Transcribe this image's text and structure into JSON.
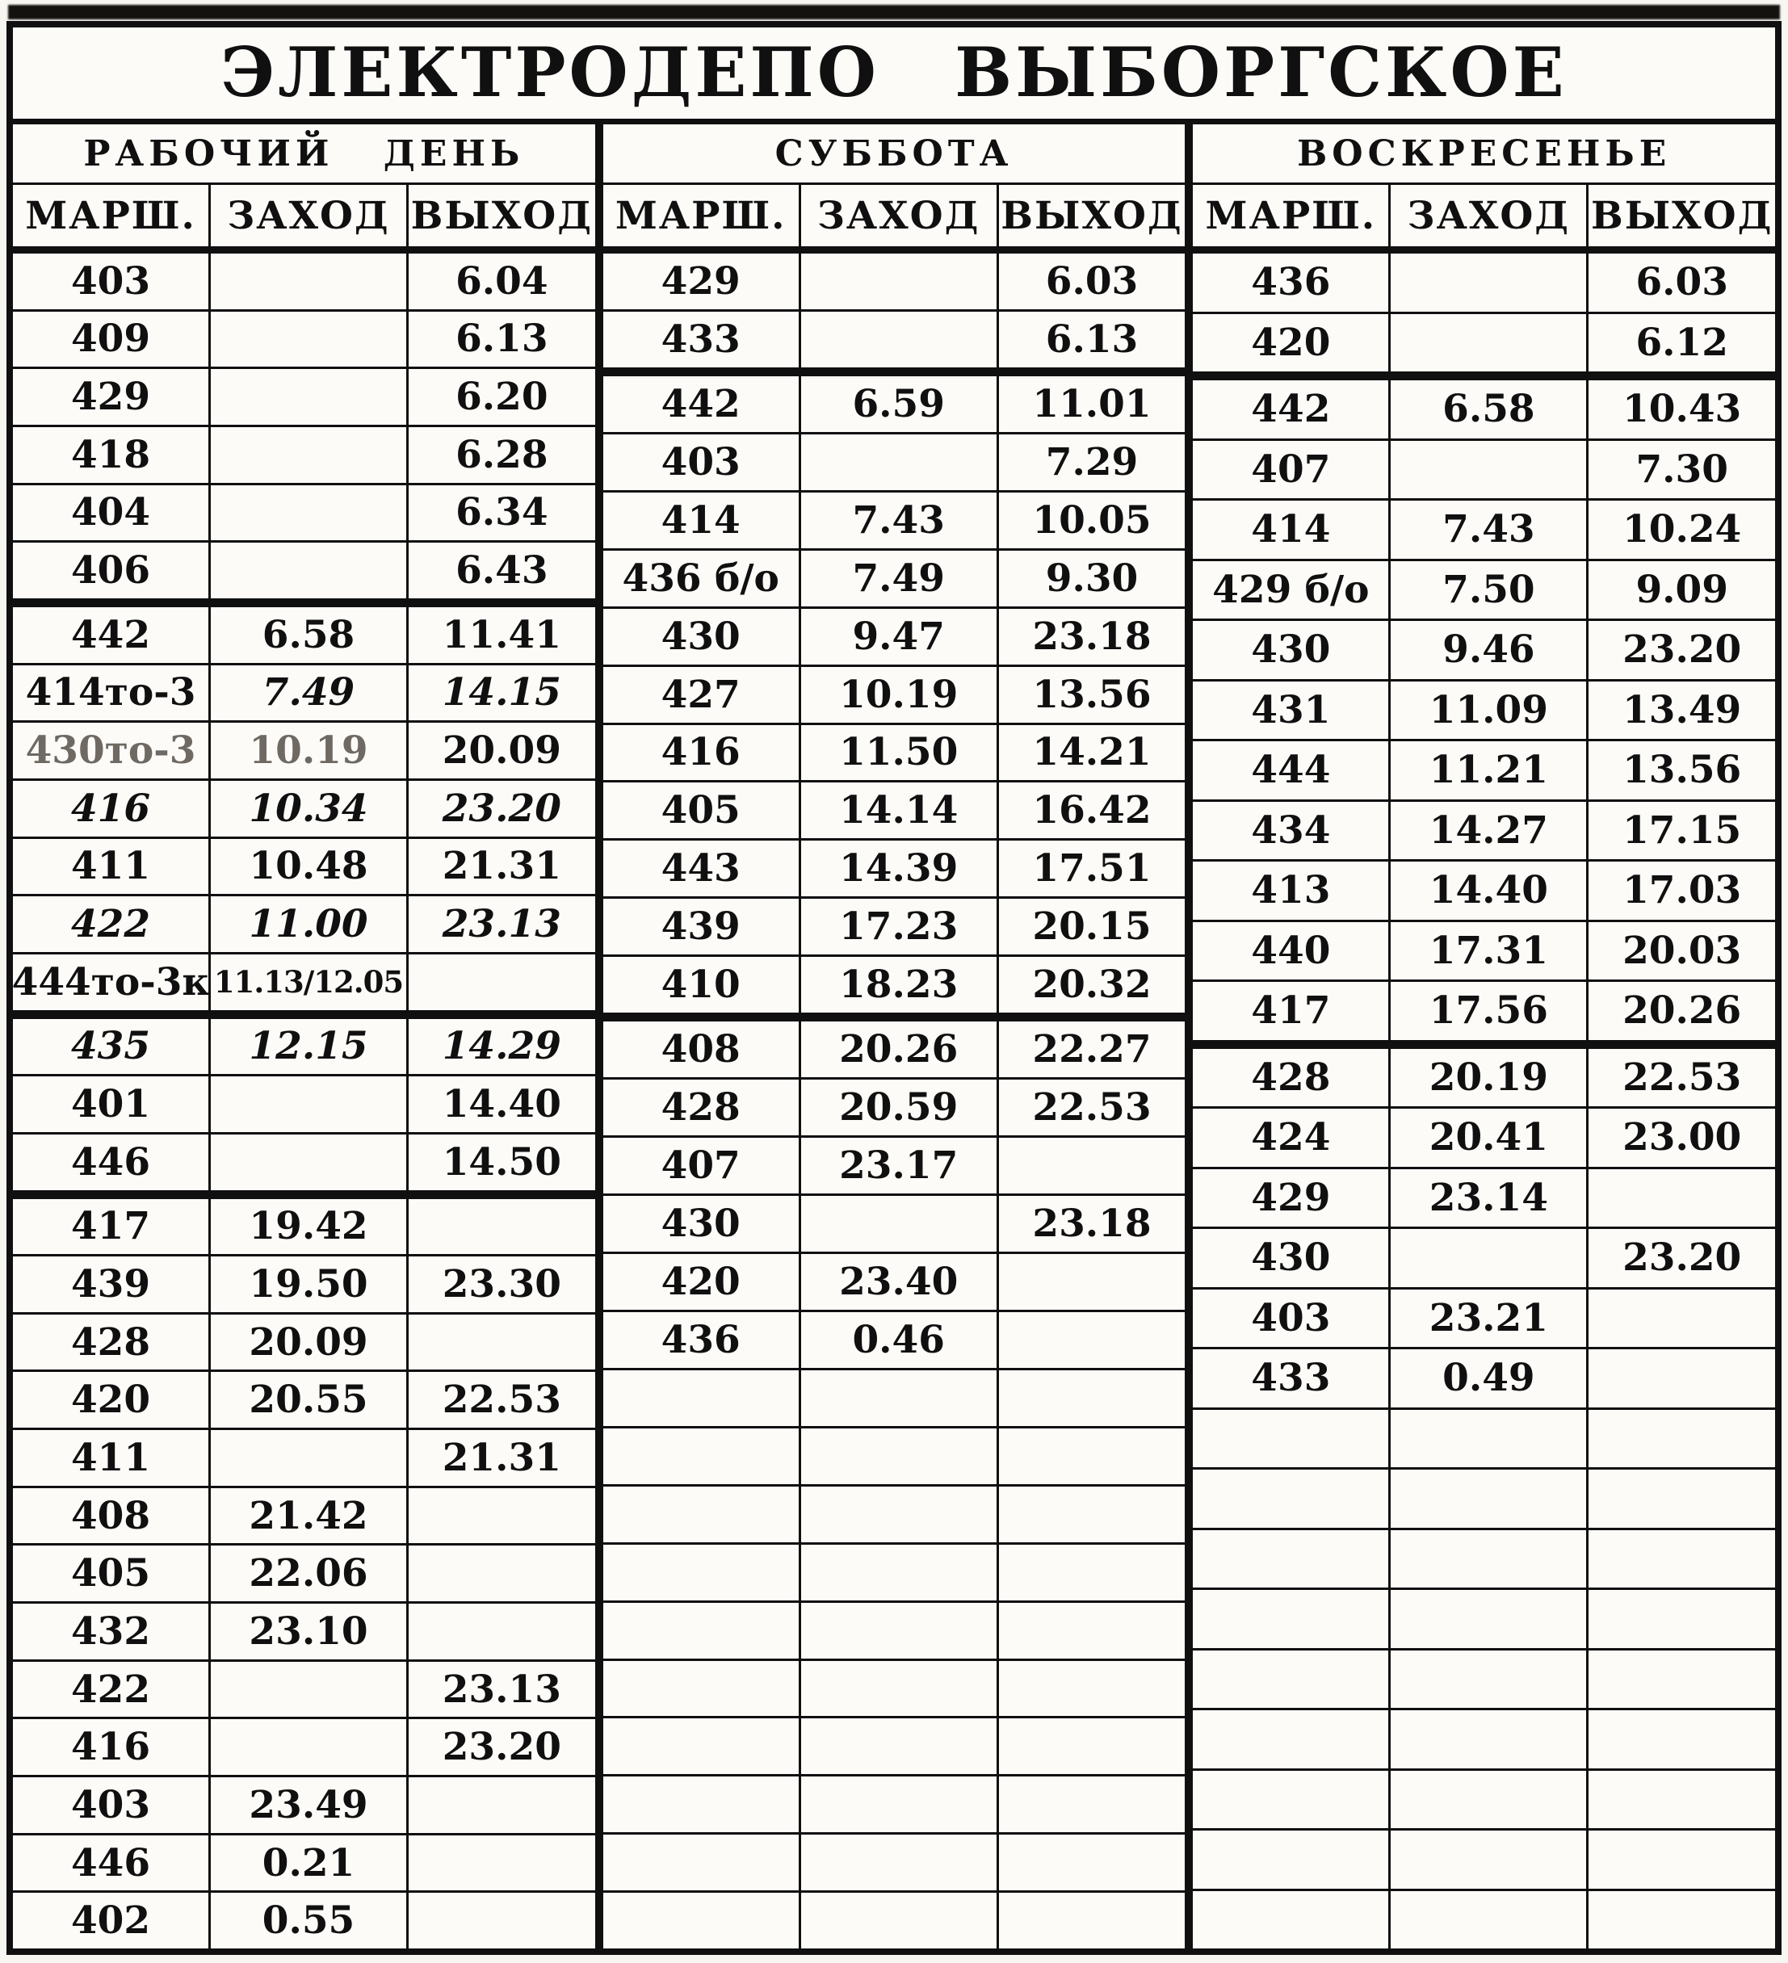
{
  "title": "ЭЛЕКТРОДЕПО ВЫБОРГСКОЕ",
  "column_headers": [
    "МАРШ.",
    "ЗАХОД",
    "ВЫХОД"
  ],
  "colors": {
    "ink": "#101010",
    "paper": "#f8f6f1"
  },
  "tables": [
    {
      "id": "workday",
      "day": "РАБОЧИЙ ДЕНЬ",
      "rows": [
        {
          "cells": [
            "403",
            "",
            "6.04"
          ]
        },
        {
          "cells": [
            "409",
            "",
            "6.13"
          ]
        },
        {
          "cells": [
            "429",
            "",
            "6.20"
          ]
        },
        {
          "cells": [
            "418",
            "",
            "6.28"
          ]
        },
        {
          "cells": [
            "404",
            "",
            "6.34"
          ]
        },
        {
          "cells": [
            "406",
            "",
            "6.43"
          ],
          "thick": true
        },
        {
          "cells": [
            "442",
            "6.58",
            "11.41"
          ]
        },
        {
          "cells": [
            "414то-3",
            {
              "t": "7.49",
              "it": true
            },
            {
              "t": "14.15",
              "it": true
            }
          ]
        },
        {
          "cells": [
            {
              "t": "430то-3",
              "faded": true
            },
            {
              "t": "10.19",
              "faded": true
            },
            "20.09"
          ]
        },
        {
          "cells": [
            {
              "t": "416",
              "it": true
            },
            {
              "t": "10.34",
              "it": true
            },
            {
              "t": "23.20",
              "it": true
            }
          ]
        },
        {
          "cells": [
            "411",
            "10.48",
            "21.31"
          ]
        },
        {
          "cells": [
            {
              "t": "422",
              "it": true
            },
            {
              "t": "11.00",
              "it": true
            },
            {
              "t": "23.13",
              "it": true
            }
          ]
        },
        {
          "cells": [
            "444то-3к",
            {
              "t": "11.13/12.05",
              "small": true
            },
            ""
          ],
          "thick": true
        },
        {
          "cells": [
            {
              "t": "435",
              "it": true
            },
            {
              "t": "12.15",
              "it": true
            },
            {
              "t": "14.29",
              "it": true
            }
          ]
        },
        {
          "cells": [
            "401",
            "",
            "14.40"
          ]
        },
        {
          "cells": [
            "446",
            "",
            "14.50"
          ],
          "thick": true
        },
        {
          "cells": [
            "417",
            "19.42",
            ""
          ]
        },
        {
          "cells": [
            "439",
            "19.50",
            "23.30"
          ]
        },
        {
          "cells": [
            "428",
            "20.09",
            ""
          ]
        },
        {
          "cells": [
            "420",
            "20.55",
            "22.53"
          ]
        },
        {
          "cells": [
            "411",
            "",
            "21.31"
          ]
        },
        {
          "cells": [
            "408",
            "21.42",
            ""
          ]
        },
        {
          "cells": [
            "405",
            "22.06",
            ""
          ]
        },
        {
          "cells": [
            "432",
            "23.10",
            ""
          ]
        },
        {
          "cells": [
            "422",
            "",
            "23.13"
          ]
        },
        {
          "cells": [
            "416",
            "",
            "23.20"
          ]
        },
        {
          "cells": [
            "403",
            "23.49",
            ""
          ]
        },
        {
          "cells": [
            "446",
            "0.21",
            ""
          ]
        },
        {
          "cells": [
            "402",
            "0.55",
            ""
          ]
        }
      ]
    },
    {
      "id": "saturday",
      "day": "СУББОТА",
      "rows": [
        {
          "cells": [
            "429",
            "",
            "6.03"
          ]
        },
        {
          "cells": [
            "433",
            "",
            "6.13"
          ],
          "thick": true
        },
        {
          "cells": [
            "442",
            "6.59",
            "11.01"
          ]
        },
        {
          "cells": [
            "403",
            "",
            "7.29"
          ]
        },
        {
          "cells": [
            "414",
            "7.43",
            "10.05"
          ]
        },
        {
          "cells": [
            "436 б/о",
            "7.49",
            "9.30"
          ]
        },
        {
          "cells": [
            "430",
            "9.47",
            "23.18"
          ]
        },
        {
          "cells": [
            "427",
            "10.19",
            "13.56"
          ]
        },
        {
          "cells": [
            "416",
            "11.50",
            "14.21"
          ]
        },
        {
          "cells": [
            "405",
            "14.14",
            "16.42"
          ]
        },
        {
          "cells": [
            "443",
            "14.39",
            "17.51"
          ]
        },
        {
          "cells": [
            "439",
            "17.23",
            "20.15"
          ]
        },
        {
          "cells": [
            "410",
            "18.23",
            "20.32"
          ],
          "thick": true
        },
        {
          "cells": [
            "408",
            "20.26",
            "22.27"
          ]
        },
        {
          "cells": [
            "428",
            "20.59",
            "22.53"
          ]
        },
        {
          "cells": [
            "407",
            "23.17",
            ""
          ]
        },
        {
          "cells": [
            "430",
            "",
            "23.18"
          ]
        },
        {
          "cells": [
            "420",
            "23.40",
            ""
          ]
        },
        {
          "cells": [
            "436",
            "0.46",
            ""
          ]
        },
        {
          "cells": [
            "",
            "",
            ""
          ]
        },
        {
          "cells": [
            "",
            "",
            ""
          ]
        },
        {
          "cells": [
            "",
            "",
            ""
          ]
        },
        {
          "cells": [
            "",
            "",
            ""
          ]
        },
        {
          "cells": [
            "",
            "",
            ""
          ]
        },
        {
          "cells": [
            "",
            "",
            ""
          ]
        },
        {
          "cells": [
            "",
            "",
            ""
          ]
        },
        {
          "cells": [
            "",
            "",
            ""
          ]
        },
        {
          "cells": [
            "",
            "",
            ""
          ]
        },
        {
          "cells": [
            "",
            "",
            ""
          ]
        }
      ]
    },
    {
      "id": "sunday",
      "day": "ВОСКРЕСЕНЬЕ",
      "rows": [
        {
          "cells": [
            "436",
            "",
            "6.03"
          ]
        },
        {
          "cells": [
            "420",
            "",
            "6.12"
          ],
          "thick": true
        },
        {
          "cells": [
            "442",
            "6.58",
            "10.43"
          ]
        },
        {
          "cells": [
            "407",
            "",
            "7.30"
          ]
        },
        {
          "cells": [
            "414",
            "7.43",
            "10.24"
          ]
        },
        {
          "cells": [
            "429 б/о",
            "7.50",
            "9.09"
          ]
        },
        {
          "cells": [
            "430",
            "9.46",
            "23.20"
          ]
        },
        {
          "cells": [
            "431",
            "11.09",
            "13.49"
          ]
        },
        {
          "cells": [
            "444",
            "11.21",
            "13.56"
          ]
        },
        {
          "cells": [
            "434",
            "14.27",
            "17.15"
          ]
        },
        {
          "cells": [
            "413",
            "14.40",
            "17.03"
          ]
        },
        {
          "cells": [
            "440",
            "17.31",
            "20.03"
          ]
        },
        {
          "cells": [
            "417",
            "17.56",
            "20.26"
          ],
          "thick": true
        },
        {
          "cells": [
            "428",
            "20.19",
            "22.53"
          ]
        },
        {
          "cells": [
            "424",
            "20.41",
            "23.00"
          ]
        },
        {
          "cells": [
            "429",
            "23.14",
            ""
          ]
        },
        {
          "cells": [
            "430",
            "",
            "23.20"
          ]
        },
        {
          "cells": [
            "403",
            "23.21",
            ""
          ]
        },
        {
          "cells": [
            "433",
            "0.49",
            ""
          ]
        },
        {
          "cells": [
            "",
            "",
            ""
          ]
        },
        {
          "cells": [
            "",
            "",
            ""
          ]
        },
        {
          "cells": [
            "",
            "",
            ""
          ]
        },
        {
          "cells": [
            "",
            "",
            ""
          ]
        },
        {
          "cells": [
            "",
            "",
            ""
          ]
        },
        {
          "cells": [
            "",
            "",
            ""
          ]
        },
        {
          "cells": [
            "",
            "",
            ""
          ]
        },
        {
          "cells": [
            "",
            "",
            ""
          ]
        },
        {
          "cells": [
            "",
            "",
            ""
          ]
        }
      ]
    }
  ]
}
